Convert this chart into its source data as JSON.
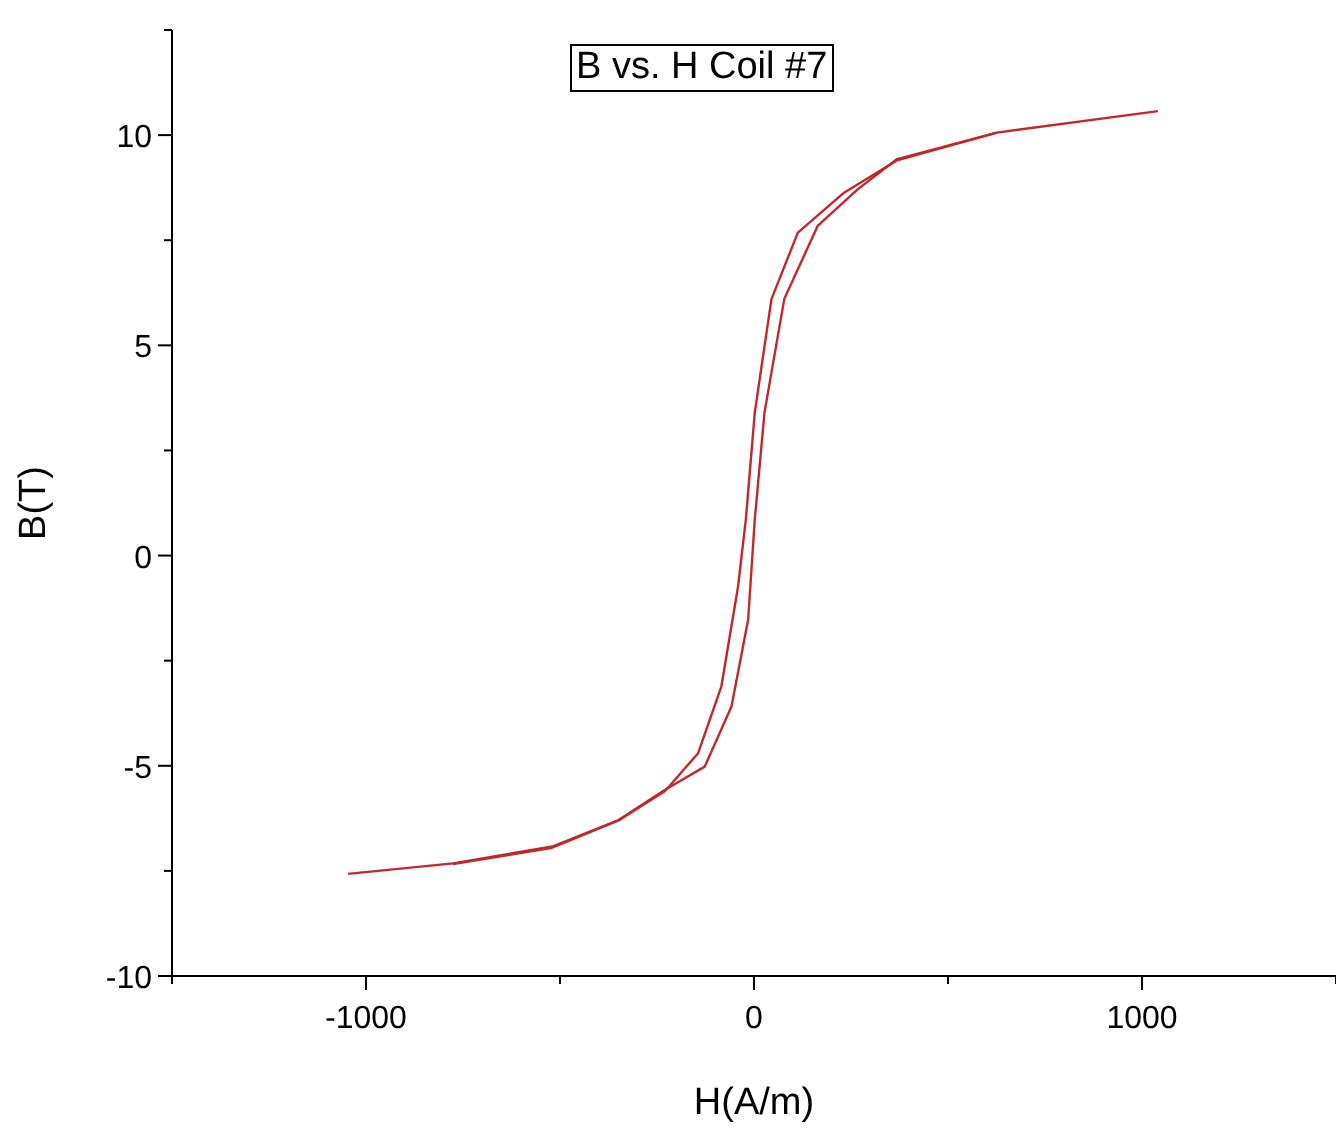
{
  "chart_data": {
    "type": "line",
    "title": "B vs. H Coil #7",
    "xlabel": "H(A/m)",
    "ylabel": "B(T)",
    "xlim": [
      -1500,
      1500
    ],
    "xticks": [
      {
        "value": -1500,
        "label": null
      },
      -1000,
      {
        "value": -500,
        "label": null
      },
      0,
      {
        "value": 500,
        "label": null
      },
      1000,
      {
        "value": 1500,
        "label": null
      }
    ],
    "ylim": [
      -10,
      12.5
    ],
    "yticks": [
      -10,
      {
        "value": -7.5,
        "label": null
      },
      -5,
      {
        "value": -2.5,
        "label": null
      },
      0,
      {
        "value": 2.5,
        "label": null
      },
      5,
      {
        "value": 7.5,
        "label": null
      },
      10,
      {
        "value": 12.5,
        "label": null
      }
    ],
    "grid": false,
    "legend": false,
    "marker": "none",
    "line_style": "solid",
    "series": [
      {
        "color": "#c0282d",
        "x": [
          -1046,
          -776,
          -520,
          -349,
          -229,
          -127,
          -58,
          -15,
          2,
          27,
          78,
          164,
          267,
          369,
          626,
          1041
        ],
        "values": [
          -7.57,
          -7.32,
          -6.92,
          -6.29,
          -5.57,
          -5.02,
          -3.59,
          -1.52,
          0.86,
          3.4,
          6.1,
          7.84,
          8.71,
          9.43,
          10.06,
          10.57
        ]
      },
      {
        "color": "#c0282d",
        "x": [
          -776,
          -520,
          -349,
          -229,
          -144,
          -84,
          -41,
          -21,
          2,
          45,
          113,
          232,
          369,
          626
        ],
        "values": [
          -7.34,
          -6.95,
          -6.3,
          -5.6,
          -4.7,
          -3.11,
          -0.73,
          0.86,
          3.4,
          6.1,
          7.68,
          8.63,
          9.4,
          10.06
        ]
      }
    ]
  }
}
